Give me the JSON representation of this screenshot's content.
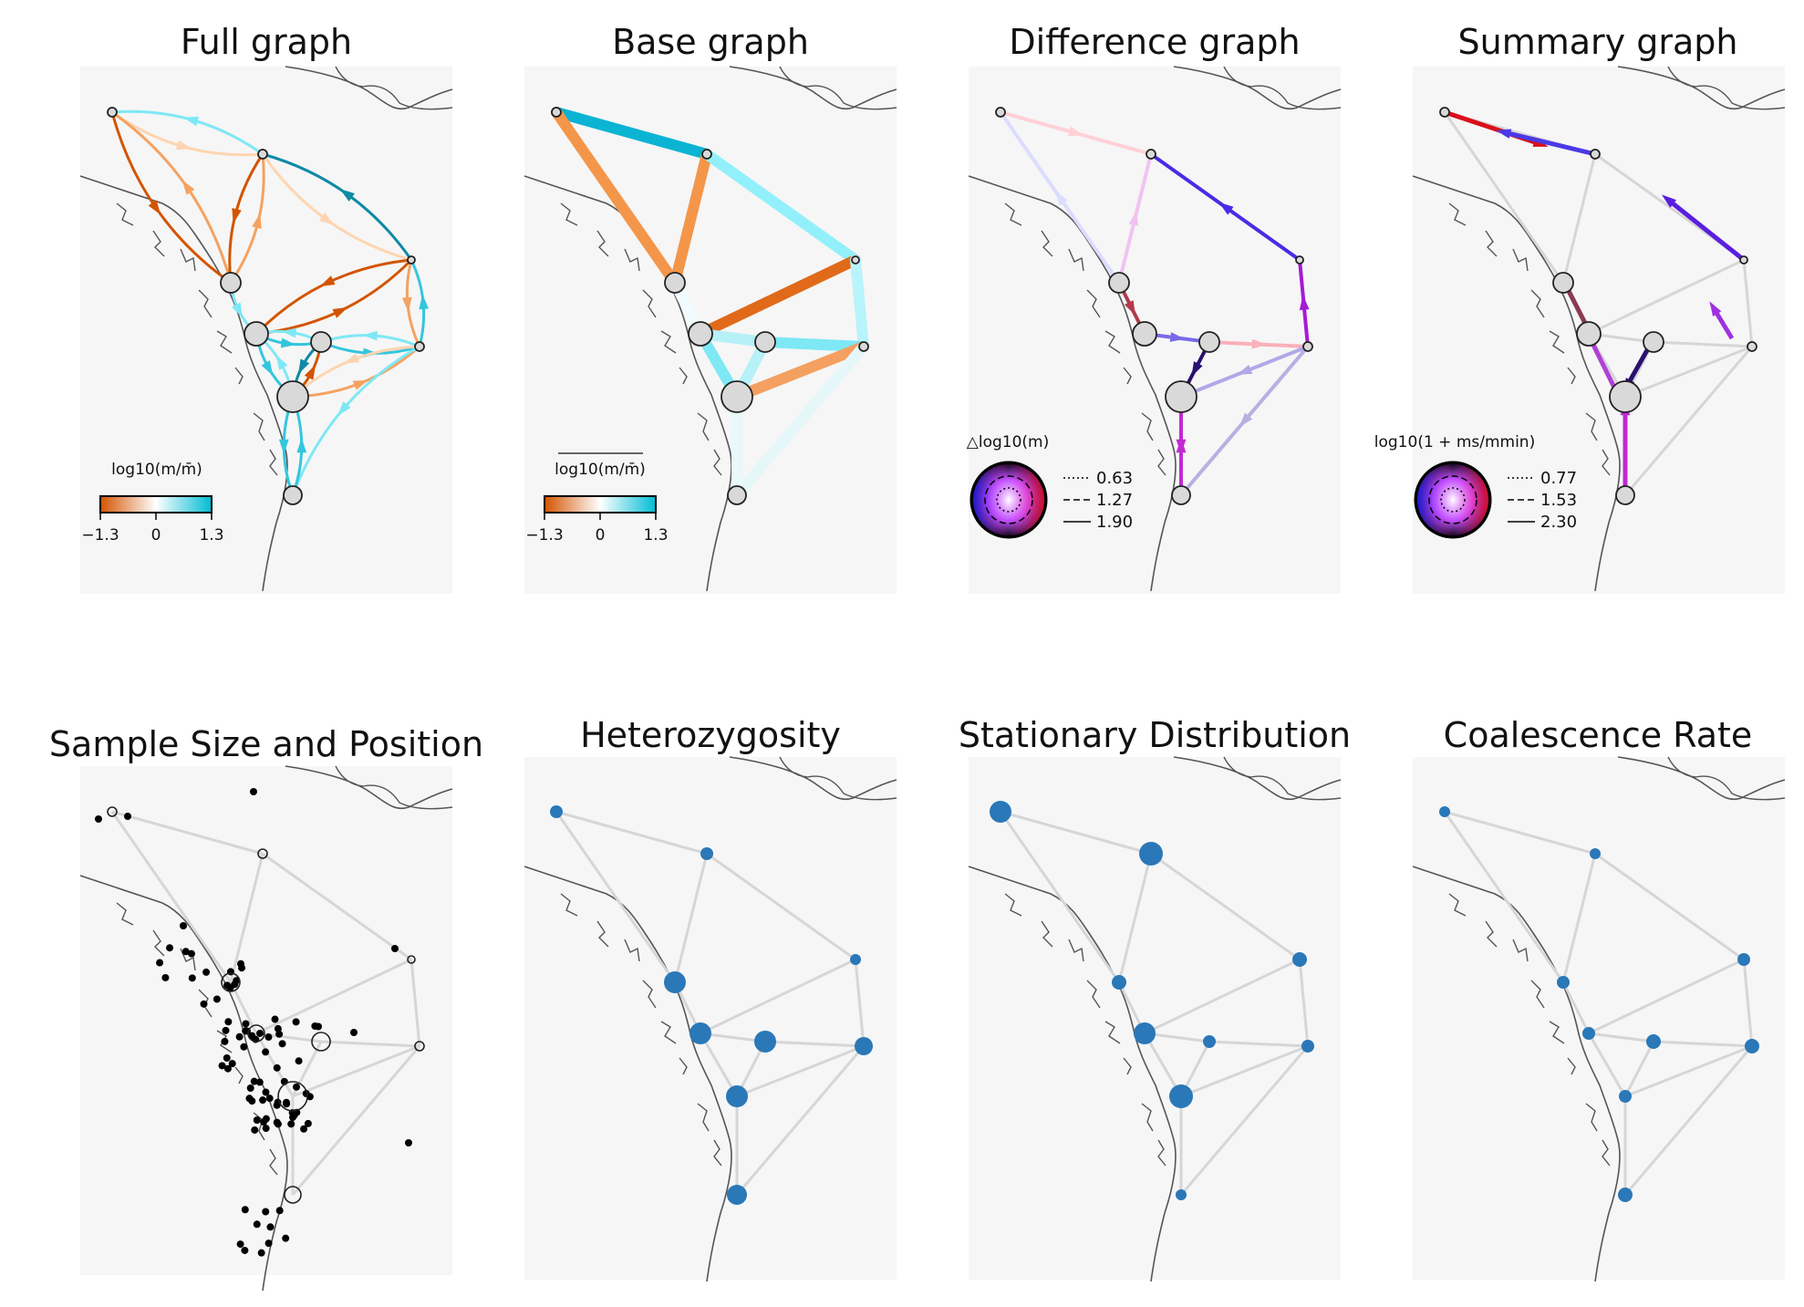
{
  "chart_data": [
    {
      "type": "network",
      "title": "Full graph",
      "colorbar": {
        "label": "log10(m/m̄)",
        "ticks": [
          "−1.3",
          "0",
          "1.3"
        ],
        "colors": [
          "#d35400",
          "#ffffff",
          "#00bcd4"
        ]
      },
      "edge_colors": [
        "#d35400",
        "#f4a261",
        "#fdd5b0",
        "#7ee8f5",
        "#33c6de",
        "#0e8aa6"
      ]
    },
    {
      "type": "network",
      "title": "Base graph",
      "colorbar": {
        "label": "log10(m/m̄)",
        "ticks": [
          "−1.3",
          "0",
          "1.3"
        ],
        "colors": [
          "#d35400",
          "#ffffff",
          "#00bcd4"
        ]
      }
    },
    {
      "type": "network",
      "title": "Difference graph",
      "legend": {
        "label": "△log10(m)",
        "entries": [
          {
            "style": "dotted",
            "value": "0.63"
          },
          {
            "style": "dashed",
            "value": "1.27"
          },
          {
            "style": "solid",
            "value": "1.90"
          }
        ]
      }
    },
    {
      "type": "network",
      "title": "Summary graph",
      "legend": {
        "label": "log10(1 + ms/mmin)",
        "entries": [
          {
            "style": "dotted",
            "value": "0.77"
          },
          {
            "style": "dashed",
            "value": "1.53"
          },
          {
            "style": "solid",
            "value": "2.30"
          }
        ]
      }
    },
    {
      "type": "scatter",
      "title": "Sample Size and Position"
    },
    {
      "type": "network",
      "title": "Heterozygosity"
    },
    {
      "type": "network",
      "title": "Stationary Distribution"
    },
    {
      "type": "network",
      "title": "Coalescence Rate"
    }
  ]
}
